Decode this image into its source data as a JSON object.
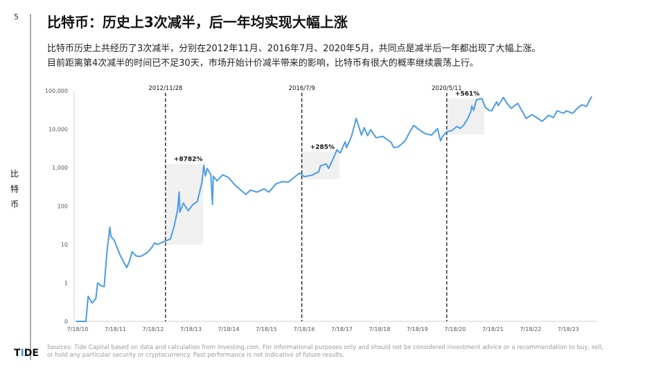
{
  "page_number": "5",
  "title": "比特币：历史上3次减半，后一年均实现大幅上涨",
  "subtitle_lines": [
    "比特币历史上共经历了3次减半，分别在2012年11月、2016年7月、2020年5月，共同点是减半后一年都出现了大幅上涨。",
    "目前距离第4次减半的时间已不足30天，市场开始计价减半带来的影响，比特币有很大的概率继续震荡上行。"
  ],
  "logo_text": "TIDE",
  "footnote": "Sources: Tide Capital based on data and calculation from Investing.com. For informational purposes only and should not be considered investment advice or a recommendation to buy, sell, or hold any particular security or cryptocurrency. Past performance is not indicative of future results.",
  "colors": {
    "line": "#4a9be8",
    "shade": "#f0f0f0",
    "axis": "#d0d0d0"
  },
  "chart_data": {
    "type": "line",
    "ylabel": "比特币",
    "yscale": "log",
    "ylim": [
      0.1,
      100000
    ],
    "ytick_values": [
      0.1,
      1,
      10,
      100,
      1000,
      10000,
      100000
    ],
    "ytick_labels": [
      "0",
      "1",
      "10",
      "100",
      "1,000",
      "10,000",
      "100,000"
    ],
    "xlim": [
      "2010-07-18",
      "2024-03-20"
    ],
    "xtick_values": [
      "2010-07-18",
      "2011-07-18",
      "2012-07-18",
      "2013-07-18",
      "2014-07-18",
      "2015-07-18",
      "2016-07-18",
      "2017-07-18",
      "2018-07-18",
      "2019-07-18",
      "2020-07-18",
      "2021-07-18",
      "2022-07-18",
      "2023-07-18"
    ],
    "xtick_labels": [
      "7/18/10",
      "7/18/11",
      "7/18/12",
      "7/18/13",
      "7/18/14",
      "7/18/15",
      "7/18/16",
      "7/18/17",
      "7/18/18",
      "7/18/19",
      "7/18/20",
      "7/18/21",
      "7/18/22",
      "7/18/23"
    ],
    "grid": false,
    "series": [
      {
        "x": [
          "2010-07-18",
          "2010-10-20",
          "2010-11-05",
          "2010-11-10",
          "2010-12-20",
          "2011-01-25",
          "2011-02-10",
          "2011-03-15",
          "2011-04-15",
          "2011-05-10",
          "2011-06-01",
          "2011-06-08",
          "2011-06-20",
          "2011-07-20",
          "2011-08-20",
          "2011-09-20",
          "2011-10-20",
          "2011-11-20",
          "2011-12-20",
          "2012-01-10",
          "2012-02-20",
          "2012-04-01",
          "2012-06-01",
          "2012-07-20",
          "2012-08-15",
          "2012-09-10",
          "2012-10-15",
          "2012-11-28",
          "2013-01-15",
          "2013-02-20",
          "2013-03-25",
          "2013-04-09",
          "2013-04-16",
          "2013-05-20",
          "2013-07-05",
          "2013-08-20",
          "2013-10-01",
          "2013-11-15",
          "2013-12-04",
          "2013-12-18",
          "2014-01-05",
          "2014-02-10",
          "2014-02-25",
          "2014-03-05",
          "2014-04-10",
          "2014-06-05",
          "2014-08-01",
          "2014-10-01",
          "2015-01-14",
          "2015-03-01",
          "2015-05-01",
          "2015-07-10",
          "2015-08-25",
          "2015-11-04",
          "2016-01-01",
          "2016-03-01",
          "2016-06-16",
          "2016-07-09",
          "2016-08-02",
          "2016-10-15",
          "2016-12-20",
          "2017-01-04",
          "2017-03-01",
          "2017-03-25",
          "2017-05-20",
          "2017-06-12",
          "2017-07-15",
          "2017-09-01",
          "2017-09-15",
          "2017-11-01",
          "2017-12-17",
          "2018-02-06",
          "2018-03-05",
          "2018-04-06",
          "2018-05-05",
          "2018-06-28",
          "2018-09-01",
          "2018-11-20",
          "2018-12-15",
          "2019-02-01",
          "2019-04-05",
          "2019-05-15",
          "2019-06-26",
          "2019-08-01",
          "2019-09-25",
          "2019-10-26",
          "2019-12-17",
          "2020-02-12",
          "2020-03-12",
          "2020-04-01",
          "2020-05-11",
          "2020-07-01",
          "2020-08-15",
          "2020-09-20",
          "2020-10-25",
          "2020-12-01",
          "2020-12-31",
          "2021-01-08",
          "2021-01-27",
          "2021-02-20",
          "2021-04-14",
          "2021-05-19",
          "2021-06-22",
          "2021-07-20",
          "2021-09-06",
          "2021-09-21",
          "2021-11-10",
          "2021-12-15",
          "2022-01-24",
          "2022-03-29",
          "2022-05-12",
          "2022-06-18",
          "2022-08-15",
          "2022-10-10",
          "2022-11-21",
          "2023-01-21",
          "2023-03-10",
          "2023-04-14",
          "2023-06-15",
          "2023-07-13",
          "2023-09-11",
          "2023-10-25",
          "2023-12-08",
          "2024-01-23",
          "2024-02-15",
          "2024-03-14"
        ],
        "y": [
          0.08,
          0.1,
          0.3,
          0.45,
          0.3,
          0.4,
          1.0,
          0.85,
          0.8,
          6,
          18,
          28,
          16,
          13,
          8,
          5,
          3.5,
          2.5,
          4,
          6.5,
          5,
          4.9,
          6,
          8.5,
          11,
          10,
          11,
          12.3,
          14,
          30,
          80,
          230,
          70,
          120,
          75,
          110,
          130,
          400,
          1150,
          600,
          950,
          650,
          110,
          600,
          450,
          650,
          550,
          350,
          200,
          260,
          230,
          280,
          230,
          380,
          430,
          420,
          720,
          650,
          580,
          640,
          780,
          1100,
          1250,
          950,
          2000,
          2900,
          2400,
          4700,
          3300,
          6500,
          19000,
          7000,
          11000,
          6800,
          9700,
          6000,
          6500,
          4500,
          3300,
          3500,
          5000,
          8000,
          12500,
          10500,
          8200,
          7500,
          7000,
          10300,
          5000,
          6500,
          8600,
          9200,
          11700,
          10500,
          13000,
          19000,
          29000,
          40000,
          31000,
          57000,
          63000,
          37000,
          31000,
          30000,
          52000,
          41000,
          67000,
          47000,
          35000,
          47000,
          29000,
          19000,
          24000,
          19000,
          16000,
          23000,
          20000,
          30000,
          26000,
          30000,
          25800,
          34500,
          43000,
          39000,
          52000,
          71000
        ]
      }
    ],
    "vlines": [
      {
        "date": "2012-11-28",
        "label": "2012/11/28"
      },
      {
        "date": "2016-07-09",
        "label": "2016/7/9"
      },
      {
        "date": "2020-05-11",
        "label": "2020/5/11"
      }
    ],
    "shaded_regions": [
      {
        "start": "2012-11-28",
        "end": "2013-11-28",
        "low": 10,
        "high": 1250,
        "label": "+8782%"
      },
      {
        "start": "2016-07-09",
        "end": "2017-07-09",
        "low": 500,
        "high": 2600,
        "label": "+285%"
      },
      {
        "start": "2020-05-11",
        "end": "2021-05-11",
        "low": 7300,
        "high": 63000,
        "label": "+561%"
      }
    ]
  }
}
